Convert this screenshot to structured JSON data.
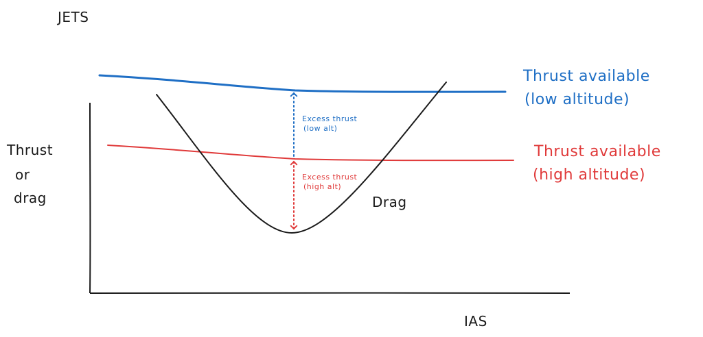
{
  "title": "JETS",
  "axes": {
    "y_label_lines": [
      "Thrust",
      "or",
      "drag"
    ],
    "x_label": "IAS"
  },
  "curves": {
    "low_alt": {
      "label_lines": [
        "Thrust available",
        "(low altitude)"
      ],
      "color": "#1f6fc5"
    },
    "high_alt": {
      "label_lines": [
        "Thrust available",
        "(high altitude)"
      ],
      "color": "#e03a3a"
    },
    "drag": {
      "label": "Drag",
      "color": "#1a1a1a"
    }
  },
  "annotations": {
    "excess_low": {
      "lines": [
        "Excess thrust",
        "(low alt)"
      ],
      "color": "#1f6fc5"
    },
    "excess_high": {
      "lines": [
        "Excess thrust",
        "(high alt)"
      ],
      "color": "#e03a3a"
    }
  }
}
